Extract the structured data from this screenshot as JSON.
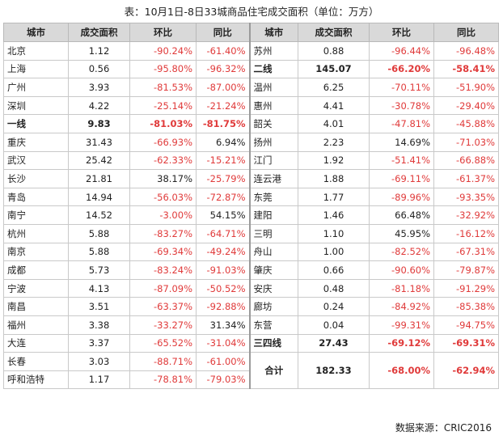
{
  "title": "表：10月1日-8日33城商品住宅成交面积（单位：万方）",
  "headers": [
    "城市",
    "成交面积",
    "环比",
    "同比",
    "城市",
    "成交面积",
    "环比",
    "同比"
  ],
  "left_rows": [
    {
      "city": "北京",
      "area": "1.12",
      "mom": "-90.24%",
      "yoy": "-61.40%"
    },
    {
      "city": "上海",
      "area": "0.56",
      "mom": "-95.80%",
      "yoy": "-96.32%"
    },
    {
      "city": "广州",
      "area": "3.93",
      "mom": "-81.53%",
      "yoy": "-87.00%"
    },
    {
      "city": "深圳",
      "area": "4.22",
      "mom": "-25.14%",
      "yoy": "-21.24%"
    },
    {
      "city": "一线",
      "area": "9.83",
      "mom": "-81.03%",
      "yoy": "-81.75%",
      "bold": true
    },
    {
      "city": "重庆",
      "area": "31.43",
      "mom": "-66.93%",
      "yoy": "6.94%"
    },
    {
      "city": "武汉",
      "area": "25.42",
      "mom": "-62.33%",
      "yoy": "-15.21%"
    },
    {
      "city": "长沙",
      "area": "21.81",
      "mom": "38.17%",
      "yoy": "-25.79%"
    },
    {
      "city": "青岛",
      "area": "14.94",
      "mom": "-56.03%",
      "yoy": "-72.87%"
    },
    {
      "city": "南宁",
      "area": "14.52",
      "mom": "-3.00%",
      "yoy": "54.15%"
    },
    {
      "city": "杭州",
      "area": "5.88",
      "mom": "-83.27%",
      "yoy": "-64.71%"
    },
    {
      "city": "南京",
      "area": "5.88",
      "mom": "-69.34%",
      "yoy": "-49.24%"
    },
    {
      "city": "成都",
      "area": "5.73",
      "mom": "-83.24%",
      "yoy": "-91.03%"
    },
    {
      "city": "宁波",
      "area": "4.13",
      "mom": "-87.09%",
      "yoy": "-50.52%"
    },
    {
      "city": "南昌",
      "area": "3.51",
      "mom": "-63.37%",
      "yoy": "-92.88%"
    },
    {
      "city": "福州",
      "area": "3.38",
      "mom": "-33.27%",
      "yoy": "31.34%"
    },
    {
      "city": "大连",
      "area": "3.37",
      "mom": "-65.52%",
      "yoy": "-31.04%"
    },
    {
      "city": "长春",
      "area": "3.03",
      "mom": "-88.71%",
      "yoy": "-61.00%"
    },
    {
      "city": "呼和浩特",
      "area": "1.17",
      "mom": "-78.81%",
      "yoy": "-79.03%"
    }
  ],
  "right_rows": [
    {
      "city": "苏州",
      "area": "0.88",
      "mom": "-96.44%",
      "yoy": "-96.48%"
    },
    {
      "city": "二线",
      "area": "145.07",
      "mom": "-66.20%",
      "yoy": "-58.41%",
      "bold": true
    },
    {
      "city": "温州",
      "area": "6.25",
      "mom": "-70.11%",
      "yoy": "-51.90%"
    },
    {
      "city": "惠州",
      "area": "4.41",
      "mom": "-30.78%",
      "yoy": "-29.40%"
    },
    {
      "city": "韶关",
      "area": "4.01",
      "mom": "-47.81%",
      "yoy": "-45.88%"
    },
    {
      "city": "扬州",
      "area": "2.23",
      "mom": "14.69%",
      "yoy": "-71.03%"
    },
    {
      "city": "江门",
      "area": "1.92",
      "mom": "-51.41%",
      "yoy": "-66.88%"
    },
    {
      "city": "连云港",
      "area": "1.88",
      "mom": "-69.11%",
      "yoy": "-61.37%"
    },
    {
      "city": "东莞",
      "area": "1.77",
      "mom": "-89.96%",
      "yoy": "-93.35%"
    },
    {
      "city": "建阳",
      "area": "1.46",
      "mom": "66.48%",
      "yoy": "-32.92%"
    },
    {
      "city": "三明",
      "area": "1.10",
      "mom": "45.95%",
      "yoy": "-16.12%"
    },
    {
      "city": "舟山",
      "area": "1.00",
      "mom": "-82.52%",
      "yoy": "-67.31%"
    },
    {
      "city": "肇庆",
      "area": "0.66",
      "mom": "-90.60%",
      "yoy": "-79.87%"
    },
    {
      "city": "安庆",
      "area": "0.48",
      "mom": "-81.18%",
      "yoy": "-91.29%"
    },
    {
      "city": "廊坊",
      "area": "0.24",
      "mom": "-84.92%",
      "yoy": "-85.38%"
    },
    {
      "city": "东营",
      "area": "0.04",
      "mom": "-99.31%",
      "yoy": "-94.75%"
    },
    {
      "city": "三四线",
      "area": "27.43",
      "mom": "-69.12%",
      "yoy": "-69.31%",
      "bold": true
    },
    {
      "city": "合计",
      "area": "182.33",
      "mom": "-68.00%",
      "yoy": "-62.94%",
      "bold": true,
      "total": true
    }
  ],
  "footer": "数据来源：CRIC2016",
  "colors": {
    "negative": "#e03a3a",
    "header_bg": "#d9d9d9"
  }
}
